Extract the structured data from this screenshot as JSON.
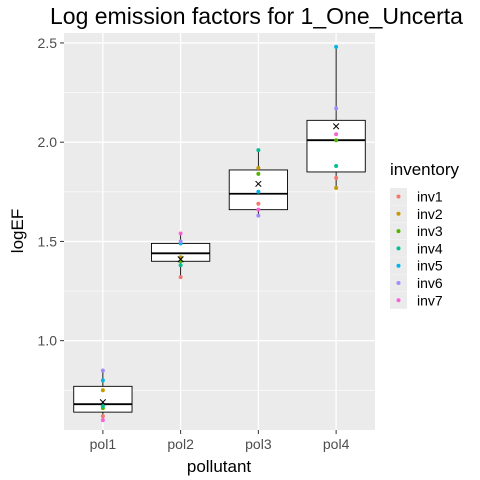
{
  "chart_data": {
    "type": "boxplot",
    "title": "Log emission factors for 1_One_Uncerta",
    "xlabel": "pollutant",
    "ylabel": "logEF",
    "categories": [
      "pol1",
      "pol2",
      "pol3",
      "pol4"
    ],
    "ylim": [
      0.55,
      2.55
    ],
    "yticks": [
      1.0,
      1.5,
      2.0,
      2.5
    ],
    "yticks_labels": [
      "1.0",
      "1.5",
      "2.0",
      "2.5"
    ],
    "grid": true,
    "legend": {
      "title": "inventory",
      "placement": "right"
    },
    "boxes": [
      {
        "category": "pol1",
        "q1": 0.64,
        "median": 0.68,
        "q3": 0.77,
        "whisker_low": 0.6,
        "whisker_high": 0.85,
        "mean": 0.69
      },
      {
        "category": "pol2",
        "q1": 1.4,
        "median": 1.44,
        "q3": 1.49,
        "whisker_low": 1.32,
        "whisker_high": 1.54,
        "mean": 1.41
      },
      {
        "category": "pol3",
        "q1": 1.66,
        "median": 1.74,
        "q3": 1.86,
        "whisker_low": 1.63,
        "whisker_high": 1.96,
        "mean": 1.79
      },
      {
        "category": "pol4",
        "q1": 1.85,
        "median": 2.01,
        "q3": 2.11,
        "whisker_low": 1.76,
        "whisker_high": 2.49,
        "mean": 2.08
      }
    ],
    "series": [
      {
        "name": "inv1",
        "color": "#F8766D",
        "values": [
          0.62,
          1.32,
          1.69,
          1.82
        ]
      },
      {
        "name": "inv2",
        "color": "#C49A00",
        "values": [
          0.75,
          1.42,
          1.87,
          1.77
        ]
      },
      {
        "name": "inv3",
        "color": "#53B400",
        "values": [
          0.66,
          1.4,
          1.84,
          2.01
        ]
      },
      {
        "name": "inv4",
        "color": "#00C094",
        "values": [
          0.67,
          1.38,
          1.96,
          1.88
        ]
      },
      {
        "name": "inv5",
        "color": "#00B6EB",
        "values": [
          0.8,
          1.49,
          1.75,
          2.48
        ]
      },
      {
        "name": "inv6",
        "color": "#A58AFF",
        "values": [
          0.85,
          1.5,
          1.63,
          2.17
        ]
      },
      {
        "name": "inv7",
        "color": "#FB61D7",
        "values": [
          0.6,
          1.54,
          1.66,
          2.04
        ]
      }
    ]
  }
}
